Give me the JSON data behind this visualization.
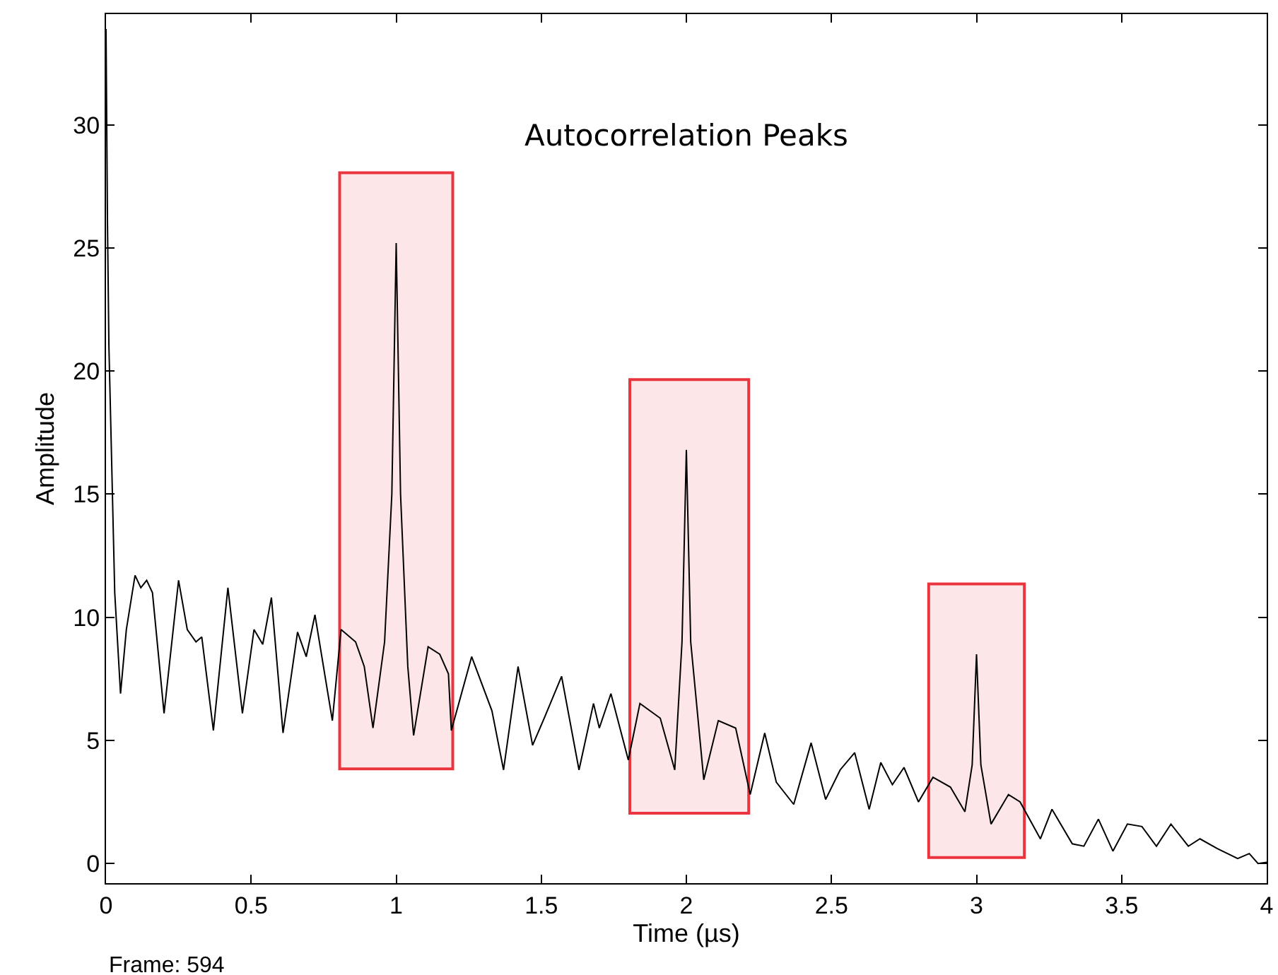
{
  "chart_data": {
    "type": "line",
    "xlabel": "Time (µs)",
    "ylabel": "Amplitude",
    "x": [
      0,
      0.005,
      0.01,
      0.02,
      0.03,
      0.05,
      0.07,
      0.1,
      0.12,
      0.14,
      0.16,
      0.2,
      0.25,
      0.28,
      0.31,
      0.33,
      0.37,
      0.42,
      0.47,
      0.51,
      0.54,
      0.57,
      0.61,
      0.66,
      0.69,
      0.72,
      0.78,
      0.81,
      0.86,
      0.89,
      0.92,
      0.96,
      0.985,
      1.0,
      1.015,
      1.04,
      1.06,
      1.11,
      1.15,
      1.18,
      1.19,
      1.26,
      1.33,
      1.37,
      1.42,
      1.47,
      1.51,
      1.57,
      1.63,
      1.68,
      1.7,
      1.74,
      1.8,
      1.84,
      1.91,
      1.96,
      1.985,
      2.0,
      2.015,
      2.06,
      2.11,
      2.17,
      2.22,
      2.27,
      2.31,
      2.37,
      2.43,
      2.48,
      2.53,
      2.58,
      2.63,
      2.67,
      2.71,
      2.75,
      2.8,
      2.85,
      2.91,
      2.96,
      2.985,
      3.0,
      3.015,
      3.05,
      3.11,
      3.15,
      3.22,
      3.26,
      3.33,
      3.37,
      3.42,
      3.47,
      3.52,
      3.57,
      3.62,
      3.67,
      3.73,
      3.77,
      3.83,
      3.9,
      3.94,
      3.97,
      4.0
    ],
    "series": [
      {
        "color": "#000000",
        "values": [
          33.9,
          26,
          21,
          16,
          11,
          6.9,
          9.5,
          11.7,
          11.2,
          11.5,
          11.0,
          6.1,
          11.5,
          9.5,
          9.0,
          9.2,
          5.4,
          11.2,
          6.1,
          9.5,
          8.9,
          10.8,
          5.3,
          9.4,
          8.4,
          10.1,
          5.8,
          9.5,
          9.0,
          8,
          5.5,
          9,
          15,
          25.2,
          15,
          8,
          5.2,
          8.8,
          8.5,
          7.7,
          5.4,
          8.4,
          6.2,
          3.8,
          8.0,
          4.8,
          5.9,
          7.6,
          3.8,
          6.5,
          5.5,
          6.9,
          4.2,
          6.5,
          5.9,
          3.8,
          9,
          16.8,
          9,
          3.4,
          5.8,
          5.5,
          2.8,
          5.3,
          3.3,
          2.4,
          4.9,
          2.6,
          3.8,
          4.5,
          2.2,
          4.1,
          3.2,
          3.9,
          2.5,
          3.5,
          3.1,
          2.1,
          4.0,
          8.5,
          4.0,
          1.6,
          2.8,
          2.5,
          1.0,
          2.2,
          0.8,
          0.7,
          1.8,
          0.5,
          1.6,
          1.5,
          0.7,
          1.6,
          0.7,
          1.0,
          0.6,
          0.2,
          0.4,
          0,
          0.05
        ]
      }
    ],
    "xlim": [
      0,
      4
    ],
    "ylim": [
      -0.8,
      34.5
    ],
    "xticks": [
      0,
      0.5,
      1,
      1.5,
      2,
      2.5,
      3,
      3.5,
      4
    ],
    "yticks": [
      0,
      5,
      10,
      15,
      20,
      25,
      30
    ],
    "grid": false,
    "marker": "none",
    "line_style": "solid",
    "bands": [
      {
        "axis": "x",
        "from": 0.81,
        "to": 1.19,
        "color": "#e8202a"
      },
      {
        "axis": "x",
        "from": 1.81,
        "to": 2.21,
        "color": "#e8202a"
      },
      {
        "axis": "x",
        "from": 2.84,
        "to": 3.16,
        "color": "#e8202a"
      }
    ],
    "annotations": [
      "Autocorrelation Peaks",
      "Frame: 594"
    ]
  }
}
